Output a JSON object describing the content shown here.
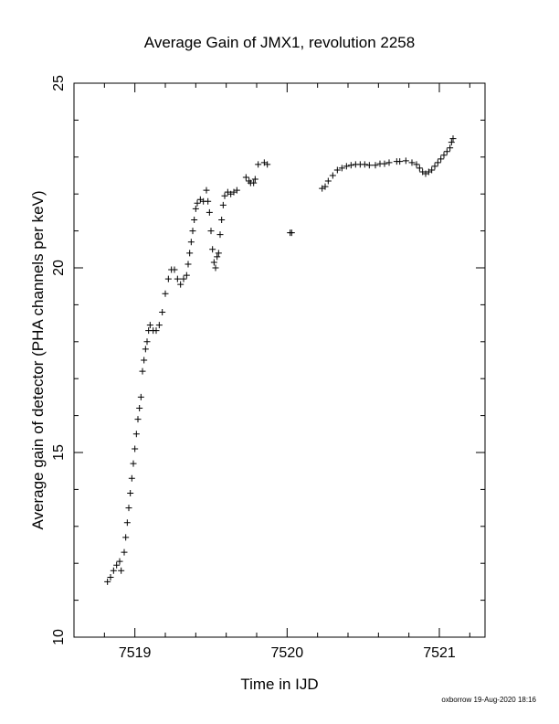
{
  "chart_data": {
    "type": "scatter",
    "title": "Average Gain of JMX1, revolution 2258",
    "xlabel": "Time in IJD",
    "ylabel": "Average gain of detector (PHA channels per keV)",
    "xlim": [
      7518.6,
      7521.3
    ],
    "ylim": [
      10,
      25
    ],
    "xticks": [
      7519,
      7520,
      7521
    ],
    "xtick_labels": [
      "7519",
      "7520",
      "7521"
    ],
    "yticks": [
      10,
      15,
      20,
      25
    ],
    "ytick_labels": [
      "10",
      "15",
      "20",
      "25"
    ],
    "marker": "plus",
    "grid": false,
    "footer": "oxborrow 19-Aug-2020 18:16",
    "series": [
      {
        "points": [
          [
            7518.82,
            11.5
          ],
          [
            7518.84,
            11.62
          ],
          [
            7518.86,
            11.8
          ],
          [
            7518.88,
            11.95
          ],
          [
            7518.9,
            12.05
          ],
          [
            7518.91,
            11.8
          ],
          [
            7518.93,
            12.3
          ],
          [
            7518.94,
            12.7
          ],
          [
            7518.95,
            13.1
          ],
          [
            7518.96,
            13.5
          ],
          [
            7518.97,
            13.9
          ],
          [
            7518.98,
            14.3
          ],
          [
            7518.99,
            14.7
          ],
          [
            7519.0,
            15.1
          ],
          [
            7519.01,
            15.5
          ],
          [
            7519.02,
            15.9
          ],
          [
            7519.03,
            16.2
          ],
          [
            7519.04,
            16.5
          ],
          [
            7519.05,
            17.2
          ],
          [
            7519.06,
            17.5
          ],
          [
            7519.07,
            17.8
          ],
          [
            7519.08,
            18.0
          ],
          [
            7519.09,
            18.3
          ],
          [
            7519.1,
            18.45
          ],
          [
            7519.12,
            18.3
          ],
          [
            7519.14,
            18.3
          ],
          [
            7519.16,
            18.45
          ],
          [
            7519.18,
            18.8
          ],
          [
            7519.2,
            19.3
          ],
          [
            7519.22,
            19.7
          ],
          [
            7519.24,
            19.95
          ],
          [
            7519.26,
            19.95
          ],
          [
            7519.28,
            19.7
          ],
          [
            7519.3,
            19.55
          ],
          [
            7519.32,
            19.7
          ],
          [
            7519.34,
            19.8
          ],
          [
            7519.35,
            20.1
          ],
          [
            7519.36,
            20.4
          ],
          [
            7519.37,
            20.7
          ],
          [
            7519.38,
            21.0
          ],
          [
            7519.39,
            21.3
          ],
          [
            7519.4,
            21.6
          ],
          [
            7519.41,
            21.75
          ],
          [
            7519.43,
            21.85
          ],
          [
            7519.45,
            21.8
          ],
          [
            7519.47,
            22.1
          ],
          [
            7519.48,
            21.8
          ],
          [
            7519.49,
            21.5
          ],
          [
            7519.5,
            21.0
          ],
          [
            7519.51,
            20.5
          ],
          [
            7519.52,
            20.15
          ],
          [
            7519.53,
            20.0
          ],
          [
            7519.54,
            20.3
          ],
          [
            7519.55,
            20.4
          ],
          [
            7519.56,
            20.9
          ],
          [
            7519.57,
            21.3
          ],
          [
            7519.58,
            21.7
          ],
          [
            7519.59,
            21.95
          ],
          [
            7519.61,
            22.05
          ],
          [
            7519.63,
            22.0
          ],
          [
            7519.65,
            22.05
          ],
          [
            7519.67,
            22.1
          ],
          [
            7519.73,
            22.45
          ],
          [
            7519.75,
            22.35
          ],
          [
            7519.76,
            22.3
          ],
          [
            7519.78,
            22.3
          ],
          [
            7519.79,
            22.4
          ],
          [
            7519.81,
            22.8
          ],
          [
            7519.85,
            22.85
          ],
          [
            7519.87,
            22.8
          ],
          [
            7520.02,
            20.95
          ],
          [
            7520.03,
            20.95
          ],
          [
            7520.23,
            22.15
          ],
          [
            7520.25,
            22.2
          ],
          [
            7520.27,
            22.35
          ],
          [
            7520.3,
            22.5
          ],
          [
            7520.33,
            22.65
          ],
          [
            7520.36,
            22.7
          ],
          [
            7520.39,
            22.75
          ],
          [
            7520.42,
            22.78
          ],
          [
            7520.45,
            22.8
          ],
          [
            7520.48,
            22.8
          ],
          [
            7520.51,
            22.8
          ],
          [
            7520.54,
            22.78
          ],
          [
            7520.58,
            22.78
          ],
          [
            7520.61,
            22.82
          ],
          [
            7520.64,
            22.82
          ],
          [
            7520.67,
            22.85
          ],
          [
            7520.72,
            22.88
          ],
          [
            7520.74,
            22.88
          ],
          [
            7520.78,
            22.9
          ],
          [
            7520.82,
            22.85
          ],
          [
            7520.85,
            22.8
          ],
          [
            7520.87,
            22.7
          ],
          [
            7520.89,
            22.6
          ],
          [
            7520.91,
            22.55
          ],
          [
            7520.93,
            22.6
          ],
          [
            7520.95,
            22.65
          ],
          [
            7520.97,
            22.75
          ],
          [
            7520.99,
            22.85
          ],
          [
            7521.01,
            22.95
          ],
          [
            7521.03,
            23.05
          ],
          [
            7521.05,
            23.15
          ],
          [
            7521.07,
            23.25
          ],
          [
            7521.08,
            23.4
          ],
          [
            7521.09,
            23.5
          ]
        ]
      }
    ]
  }
}
